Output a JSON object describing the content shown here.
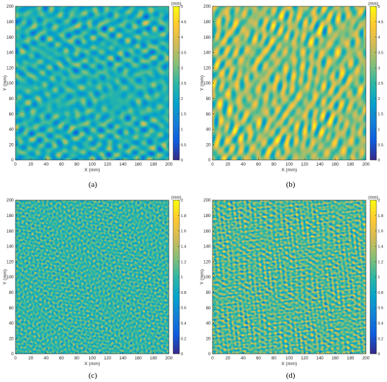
{
  "chart_data": [
    {
      "type": "heatmap",
      "caption": "(a)",
      "xlabel": "X (mm)",
      "ylabel": "Y (mm)",
      "xlim": [
        0,
        200
      ],
      "ylim": [
        0,
        200
      ],
      "xticks": [
        0,
        20,
        40,
        60,
        80,
        100,
        120,
        140,
        160,
        180,
        200
      ],
      "yticks": [
        0,
        20,
        40,
        60,
        80,
        100,
        120,
        140,
        160,
        180,
        200
      ],
      "colorbar": {
        "unit": "(mm)",
        "range": [
          0,
          5
        ],
        "ticks": [
          "0",
          "0.5",
          "1",
          "1.5",
          "2",
          "2.5",
          "3",
          "3.5",
          "4",
          "4.5",
          "5"
        ]
      },
      "colormap": "parula",
      "texture": {
        "mean": 2.3,
        "amplitude": 0.45,
        "feature_size_mm": 13
      }
    },
    {
      "type": "heatmap",
      "caption": "(b)",
      "xlabel": "X (mm)",
      "ylabel": "Y (mm)",
      "xlim": [
        0,
        200
      ],
      "ylim": [
        0,
        200
      ],
      "xticks": [
        0,
        20,
        40,
        60,
        80,
        100,
        120,
        140,
        160,
        180,
        200
      ],
      "yticks": [
        0,
        20,
        40,
        60,
        80,
        100,
        120,
        140,
        160,
        180,
        200
      ],
      "colorbar": {
        "unit": "(mm)",
        "range": [
          0,
          5
        ],
        "ticks": [
          "0",
          "0.5",
          "1",
          "1.5",
          "2",
          "2.5",
          "3",
          "3.5",
          "4",
          "4.5",
          "5"
        ]
      },
      "colormap": "parula",
      "texture": {
        "mean": 3.2,
        "amplitude": 0.7,
        "feature_size_mm": 13
      }
    },
    {
      "type": "heatmap",
      "caption": "(c)",
      "xlabel": "X (mm)",
      "ylabel": "Y (mm)",
      "xlim": [
        0,
        200
      ],
      "ylim": [
        0,
        200
      ],
      "xticks": [
        0,
        20,
        40,
        60,
        80,
        100,
        120,
        140,
        160,
        180,
        200
      ],
      "yticks": [
        0,
        20,
        40,
        60,
        80,
        100,
        120,
        140,
        160,
        180,
        200
      ],
      "colorbar": {
        "unit": "(mm)",
        "range": [
          0,
          2
        ],
        "ticks": [
          "0",
          "0.2",
          "0.4",
          "0.6",
          "0.8",
          "1",
          "1.2",
          "1.4",
          "1.6",
          "1.8",
          "2"
        ]
      },
      "colormap": "parula",
      "texture": {
        "mean": 1.0,
        "amplitude": 0.18,
        "feature_size_mm": 5
      }
    },
    {
      "type": "heatmap",
      "caption": "(d)",
      "xlabel": "X (mm)",
      "ylabel": "Y (mm)",
      "xlim": [
        0,
        200
      ],
      "ylim": [
        0,
        200
      ],
      "xticks": [
        0,
        20,
        40,
        60,
        80,
        100,
        120,
        140,
        160,
        180,
        200
      ],
      "yticks": [
        0,
        20,
        40,
        60,
        80,
        100,
        120,
        140,
        160,
        180,
        200
      ],
      "colorbar": {
        "unit": "(mm)",
        "range": [
          0,
          2
        ],
        "ticks": [
          "0",
          "0.2",
          "0.4",
          "0.6",
          "0.8",
          "1",
          "1.2",
          "1.4",
          "1.6",
          "1.8",
          "2"
        ]
      },
      "colormap": "parula",
      "texture": {
        "mean": 1.1,
        "amplitude": 0.25,
        "feature_size_mm": 5
      }
    }
  ]
}
